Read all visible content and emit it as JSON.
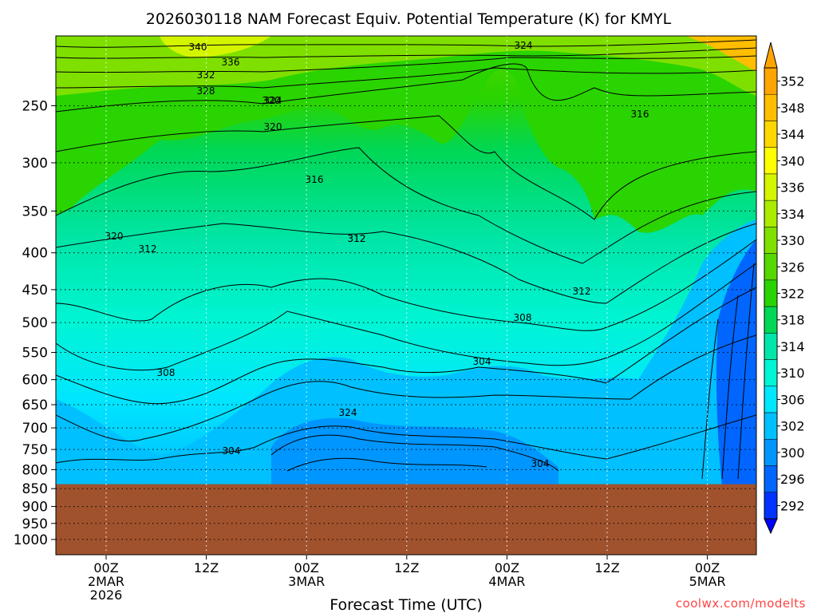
{
  "chart_data": {
    "type": "heatmap",
    "title": "2026030118 NAM Forecast Equiv. Potential Temperature (K) for KMYL",
    "xlabel": "Forecast Time (UTC)",
    "ylabel": "",
    "y_scale": "log",
    "y_reversed": true,
    "ylim": [
      1050,
      200
    ],
    "y_ticks": [
      "250",
      "300",
      "350",
      "400",
      "450",
      "500",
      "550",
      "600",
      "650",
      "700",
      "750",
      "800",
      "850",
      "900",
      "950",
      "1000"
    ],
    "x_ticks": [
      {
        "line1": "00Z",
        "line2": "2MAR",
        "line3": "2026"
      },
      {
        "line1": "12Z",
        "line2": "",
        "line3": ""
      },
      {
        "line1": "00Z",
        "line2": "3MAR",
        "line3": ""
      },
      {
        "line1": "12Z",
        "line2": "",
        "line3": ""
      },
      {
        "line1": "00Z",
        "line2": "4MAR",
        "line3": ""
      },
      {
        "line1": "12Z",
        "line2": "",
        "line3": ""
      },
      {
        "line1": "00Z",
        "line2": "5MAR",
        "line3": ""
      }
    ],
    "grid": "dotted",
    "surface_pressure_hpa": 838,
    "below_ground_color": "#a0522d",
    "colorbar": {
      "units": "K",
      "ticks": [
        "352",
        "348",
        "344",
        "340",
        "336",
        "334",
        "330",
        "326",
        "322",
        "318",
        "314",
        "310",
        "306",
        "302",
        "300",
        "296",
        "292"
      ],
      "bands": [
        {
          "value": 352,
          "color": "#ffa500"
        },
        {
          "value": 348,
          "color": "#ffbe00"
        },
        {
          "value": 344,
          "color": "#ffd700"
        },
        {
          "value": 340,
          "color": "#ffff00"
        },
        {
          "value": 336,
          "color": "#d4f500"
        },
        {
          "value": 334,
          "color": "#aaeb00"
        },
        {
          "value": 330,
          "color": "#7fe000"
        },
        {
          "value": 326,
          "color": "#55d700"
        },
        {
          "value": 322,
          "color": "#2ad400"
        },
        {
          "value": 318,
          "color": "#00d755"
        },
        {
          "value": 314,
          "color": "#00e6aa"
        },
        {
          "value": 310,
          "color": "#00f5d4"
        },
        {
          "value": 306,
          "color": "#00e6ff"
        },
        {
          "value": 302,
          "color": "#00c0ff"
        },
        {
          "value": 300,
          "color": "#0096ff"
        },
        {
          "value": 296,
          "color": "#0066ff"
        },
        {
          "value": 292,
          "color": "#0033ff"
        }
      ],
      "arrow_top_color": "#ffa500",
      "arrow_bottom_color": "#0000ff"
    },
    "contour_labels": [
      "340",
      "336",
      "332",
      "328",
      "324",
      "320",
      "316",
      "312",
      "308",
      "304",
      "324",
      "324",
      "316",
      "312",
      "320",
      "312",
      "308",
      "304",
      "304",
      "320",
      "312"
    ]
  },
  "credit": "coolwx.com/modelts"
}
